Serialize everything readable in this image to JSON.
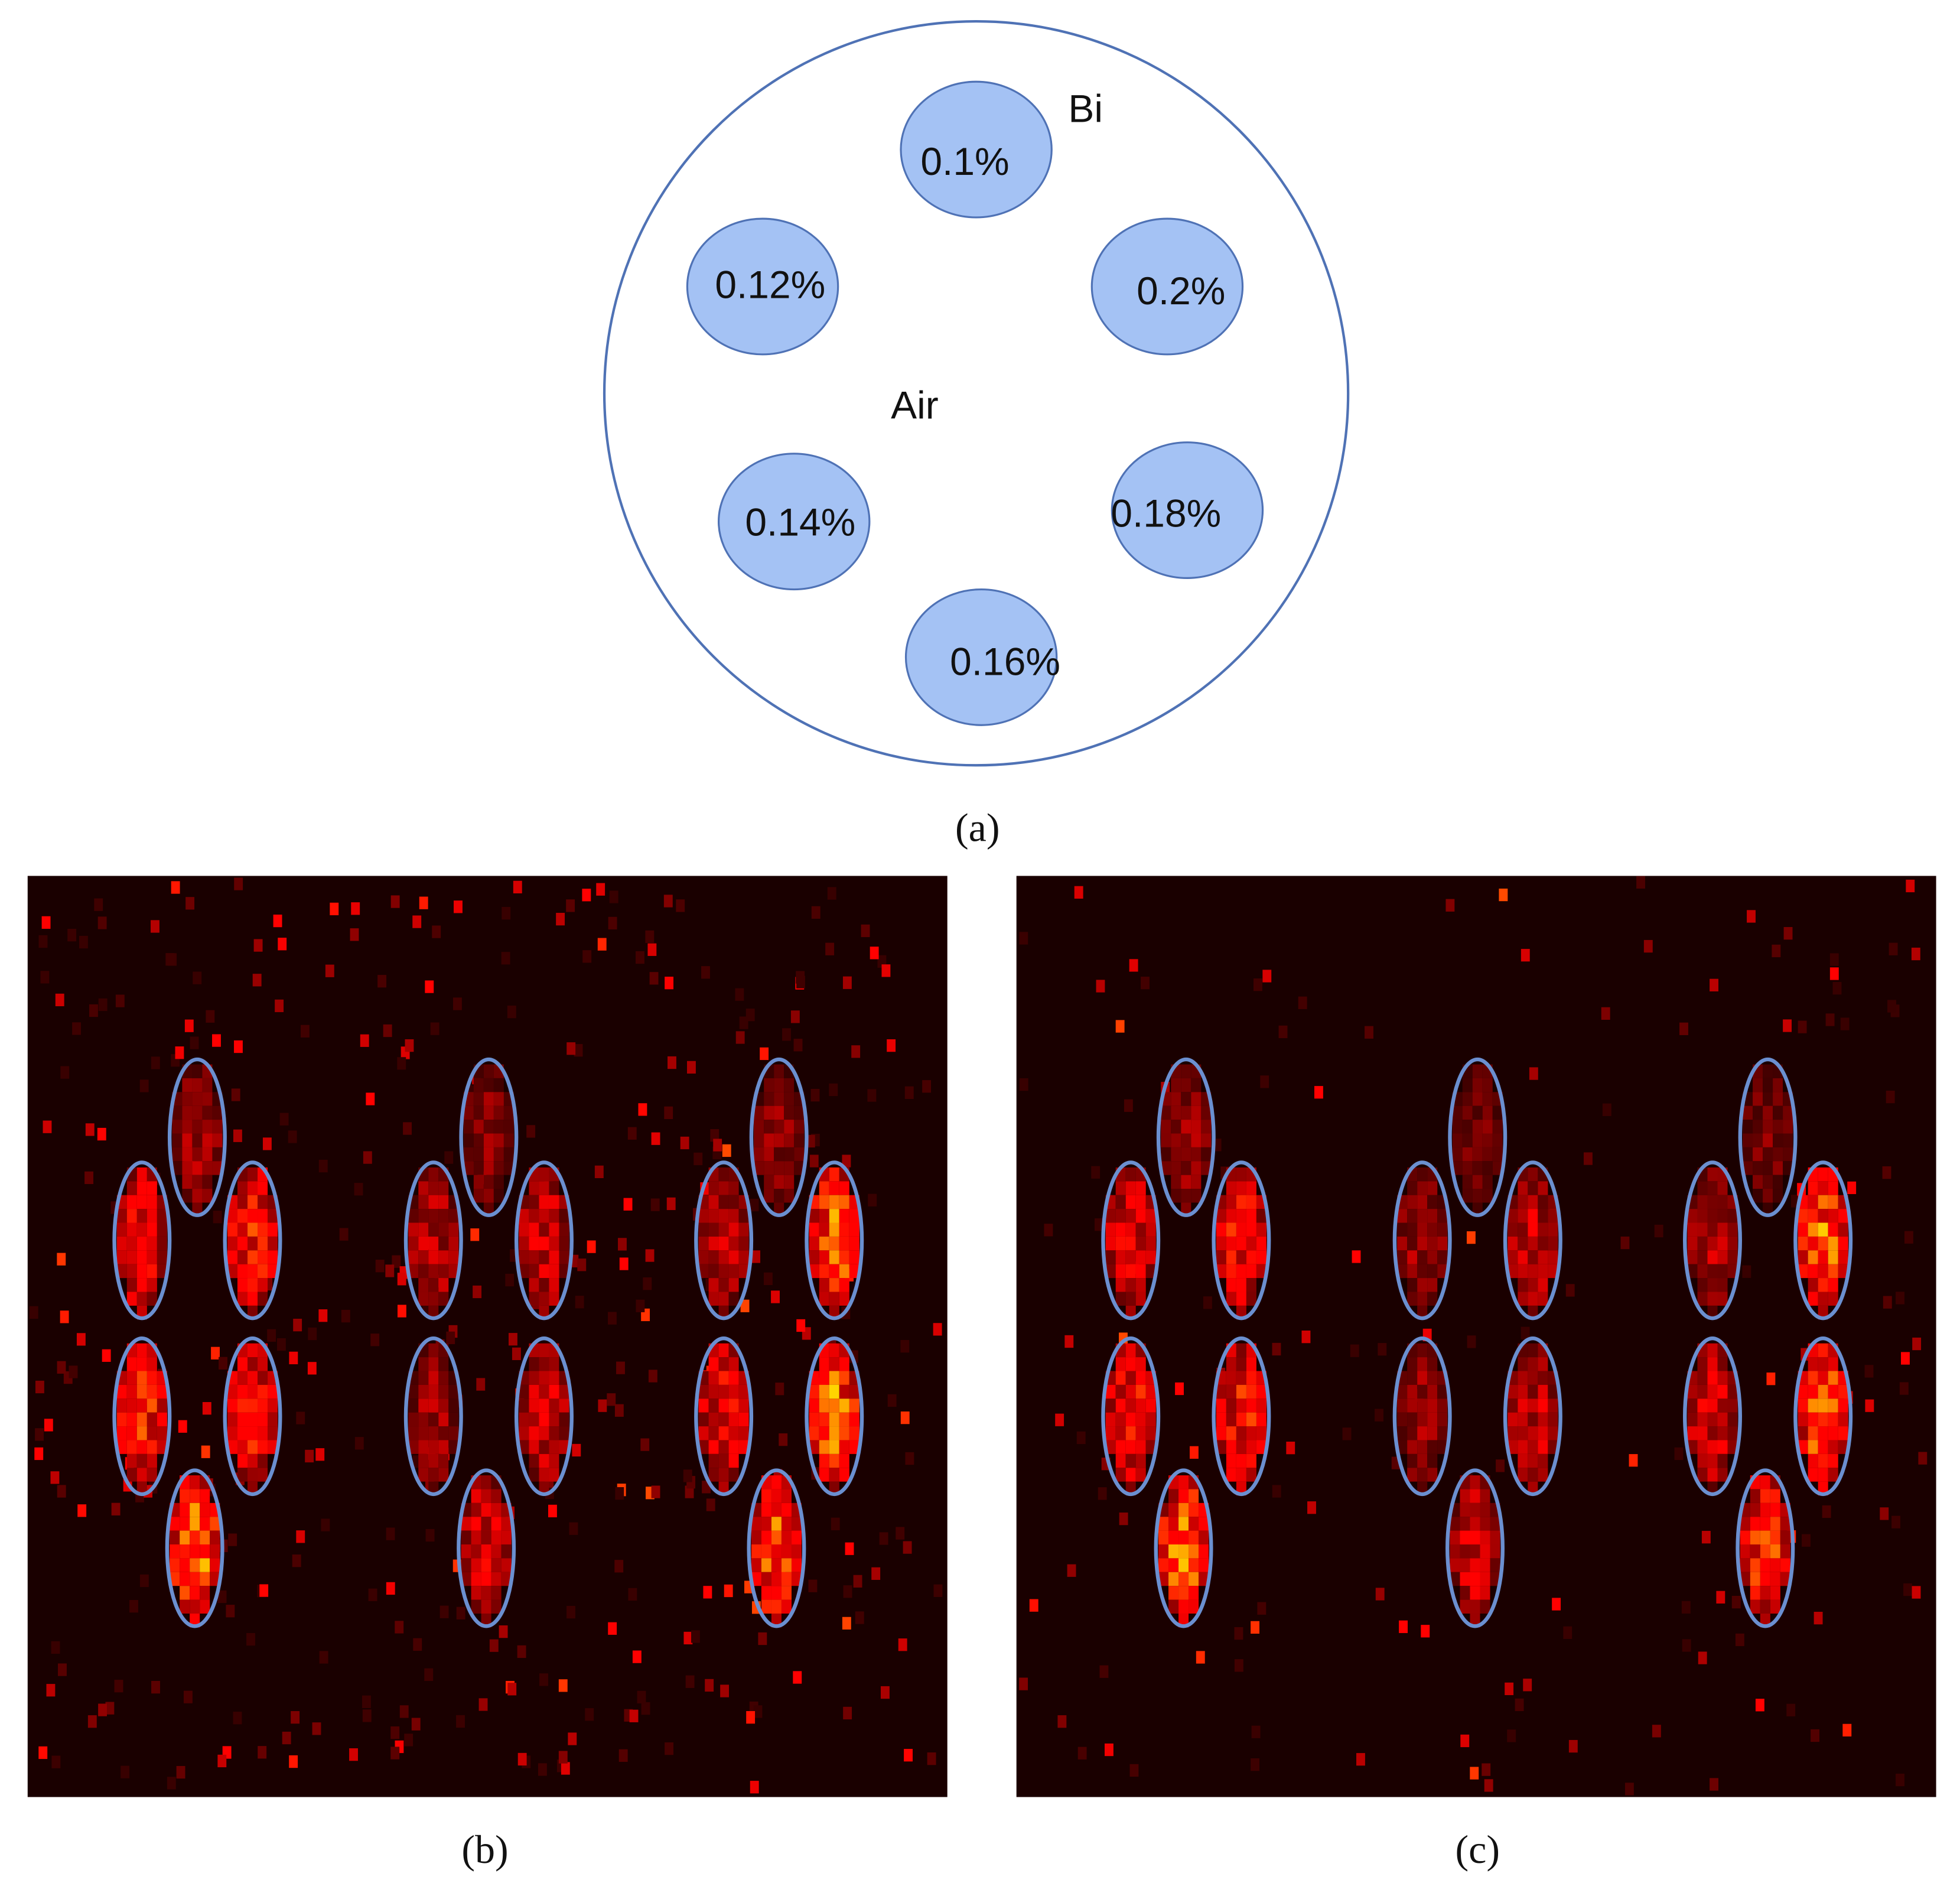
{
  "diagram": {
    "outer_labels": {
      "material": "Bi",
      "background": "Air"
    },
    "inserts": [
      "0.1%",
      "0.12%",
      "0.2%",
      "0.14%",
      "0.18%",
      "0.16%"
    ],
    "captions": [
      "(a)",
      "(b)",
      "(c)"
    ]
  }
}
